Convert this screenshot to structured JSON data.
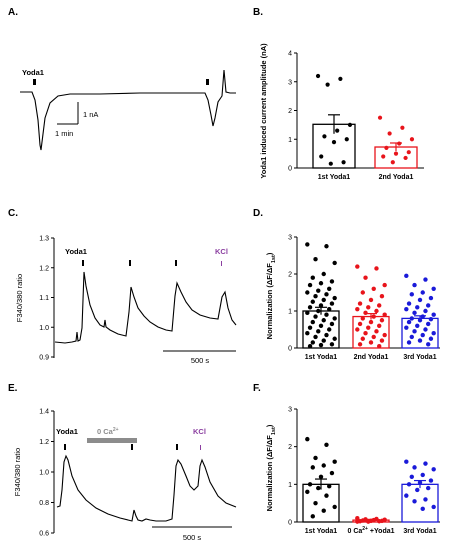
{
  "panel_labels": {
    "A": "A.",
    "B": "B.",
    "C": "C.",
    "D": "D.",
    "E": "E.",
    "F": "F."
  },
  "colors": {
    "black": "#000000",
    "red": "#e8141b",
    "blue": "#1a1ad9",
    "purple": "#8b3fa0",
    "gray": "#8c8c8c"
  },
  "trace_A": {
    "yoda_label": "Yoda1",
    "scale_current": "1 nA",
    "scale_time": "1 min"
  },
  "trace_C": {
    "yoda_label": "Yoda1",
    "kcl_label": "KCl",
    "scale_time": "500 s"
  },
  "trace_E": {
    "yoda_label": "Yoda1",
    "ca_label_main": "0 Ca",
    "ca_label_sup": "2+",
    "kcl_label": "KCl",
    "scale_time": "500 s"
  },
  "chart_data": [
    {
      "type": "bar",
      "panel": "B",
      "ylabel": "Yoda1 induced current amplitude (nA)",
      "ylim": [
        0,
        4
      ],
      "yticks": [
        "0",
        "1",
        "2",
        "3",
        "4"
      ],
      "categories": [
        "1st Yoda1",
        "2nd Yoda1"
      ],
      "values": [
        1.52,
        0.73
      ],
      "sem": [
        0.33,
        0.14
      ],
      "bar_colors": [
        "#000000",
        "#e8141b"
      ],
      "points": [
        [
          3.2,
          3.1,
          2.9,
          1.5,
          1.3,
          1.1,
          1.0,
          0.9,
          0.4,
          0.2,
          0.15
        ],
        [
          1.75,
          1.4,
          1.2,
          1.0,
          0.85,
          0.7,
          0.55,
          0.5,
          0.4,
          0.35,
          0.2
        ]
      ]
    },
    {
      "type": "line",
      "panel": "C",
      "ylabel": "F340/380 ratio",
      "ylim": [
        0.9,
        1.3
      ],
      "yticks": [
        "0.9",
        "1.0",
        "1.1",
        "1.2",
        "1.3"
      ]
    },
    {
      "type": "bar",
      "panel": "D",
      "ylabel_main": "Normalization (ΔF/ΔF",
      "ylabel_sub": "1st",
      "ylabel_end": ")",
      "ylim": [
        0,
        3
      ],
      "yticks": [
        "0",
        "1",
        "2",
        "3"
      ],
      "categories": [
        "1st Yoda1",
        "2nd Yoda1",
        "3rd Yoda1"
      ],
      "values": [
        1.0,
        0.85,
        0.8
      ],
      "sem": [
        0.1,
        0.08,
        0.07
      ],
      "bar_colors": [
        "#000000",
        "#e8141b",
        "#1a1ad9"
      ],
      "points": [
        [
          2.8,
          2.75,
          2.4,
          2.3,
          2.0,
          1.9,
          1.8,
          1.75,
          1.7,
          1.6,
          1.55,
          1.5,
          1.45,
          1.4,
          1.35,
          1.3,
          1.25,
          1.2,
          1.15,
          1.1,
          1.05,
          1.0,
          0.95,
          0.9,
          0.85,
          0.8,
          0.75,
          0.7,
          0.65,
          0.6,
          0.55,
          0.5,
          0.45,
          0.4,
          0.35,
          0.3,
          0.25,
          0.2,
          0.15,
          0.1,
          0.08,
          0.05
        ],
        [
          2.2,
          2.15,
          1.9,
          1.7,
          1.6,
          1.5,
          1.4,
          1.3,
          1.2,
          1.15,
          1.1,
          1.05,
          1.0,
          0.95,
          0.9,
          0.85,
          0.8,
          0.75,
          0.7,
          0.65,
          0.6,
          0.55,
          0.5,
          0.45,
          0.4,
          0.35,
          0.3,
          0.25,
          0.2,
          0.15,
          0.1,
          0.05
        ],
        [
          1.95,
          1.85,
          1.7,
          1.6,
          1.5,
          1.45,
          1.35,
          1.3,
          1.2,
          1.15,
          1.1,
          1.05,
          1.0,
          0.95,
          0.9,
          0.85,
          0.8,
          0.78,
          0.75,
          0.7,
          0.65,
          0.6,
          0.55,
          0.5,
          0.45,
          0.4,
          0.35,
          0.3,
          0.25,
          0.2,
          0.15,
          0.1
        ]
      ]
    },
    {
      "type": "line",
      "panel": "E",
      "ylabel": "F340/380 ratio",
      "ylim": [
        0.6,
        1.4
      ],
      "yticks": [
        "0.6",
        "0.8",
        "1.0",
        "1.2",
        "1.4"
      ]
    },
    {
      "type": "bar",
      "panel": "F",
      "ylabel_main": "Normalization (ΔF/ΔF",
      "ylabel_sub": "1st",
      "ylabel_end": ")",
      "ylim": [
        0,
        3
      ],
      "yticks": [
        "0",
        "1",
        "2",
        "3"
      ],
      "categories": [
        "1st Yoda1",
        "0 Ca",
        "3rd Yoda1"
      ],
      "category_sup": [
        "",
        "2+",
        ""
      ],
      "category_tail": [
        "",
        " +Yoda1",
        ""
      ],
      "values": [
        1.0,
        0.05,
        1.0
      ],
      "sem": [
        0.14,
        0.02,
        0.1
      ],
      "bar_colors": [
        "#000000",
        "#e8141b",
        "#1a1ad9"
      ],
      "points": [
        [
          2.2,
          2.05,
          1.7,
          1.6,
          1.5,
          1.45,
          1.3,
          1.2,
          1.0,
          0.95,
          0.9,
          0.8,
          0.7,
          0.5,
          0.4,
          0.3,
          0.15
        ],
        [
          0.1,
          0.08,
          0.07,
          0.06,
          0.05,
          0.04,
          0.03,
          0.03,
          0.02,
          0.02,
          0.01,
          0.01
        ],
        [
          1.6,
          1.55,
          1.45,
          1.4,
          1.25,
          1.2,
          1.1,
          1.05,
          1.0,
          0.9,
          0.85,
          0.7,
          0.6,
          0.55,
          0.4,
          0.35
        ]
      ]
    }
  ]
}
